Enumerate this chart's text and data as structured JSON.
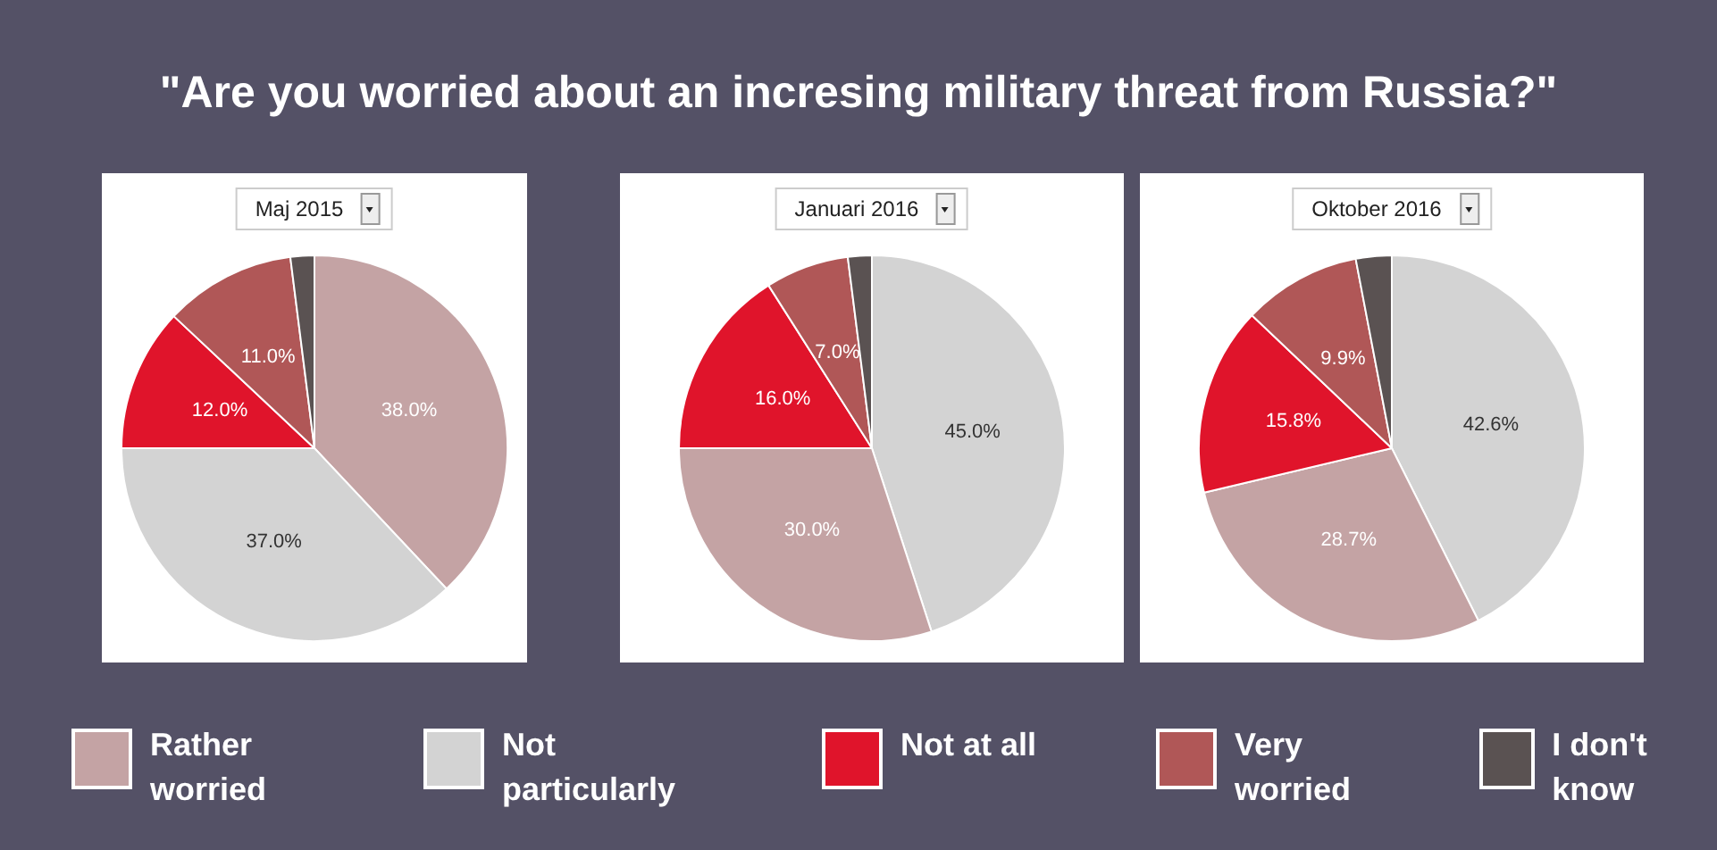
{
  "chart_data": [
    {
      "type": "other",
      "title": "\"Are you worried about an incresing military threat from Russia?\""
    },
    {
      "type": "pie",
      "title": "Maj 2015",
      "legend": "bottom",
      "categories": [
        "Rather worried",
        "Not particularly",
        "Not at all",
        "Very worried",
        "I don't know"
      ],
      "values": [
        38.0,
        37.0,
        12.0,
        11.0,
        2.0
      ],
      "colors": [
        "#c4a3a4",
        "#d3d3d3",
        "#e0142b",
        "#b05757",
        "#5a5252"
      ],
      "value_labels": [
        "38.0%",
        "37.0%",
        "12.0%",
        "11.0%",
        null
      ]
    },
    {
      "type": "pie",
      "title": "Januari 2016",
      "categories": [
        null,
        null,
        null,
        null,
        null
      ],
      "values": [
        45.0,
        30.0,
        16.0,
        7.0,
        2.0
      ],
      "colors": [
        "#d3d3d3",
        "#c4a3a4",
        "#e0142b",
        "#b05757",
        "#5a5252"
      ],
      "value_labels": [
        "45.0%",
        "30.0%",
        "16.0%",
        "7.0%",
        null
      ]
    },
    {
      "type": "pie",
      "title": "Oktober 2016",
      "categories": [
        null,
        null,
        null,
        null,
        null
      ],
      "values": [
        42.6,
        28.7,
        15.8,
        9.9,
        3.0
      ],
      "colors": [
        "#d3d3d3",
        "#c4a3a4",
        "#e0142b",
        "#b05757",
        "#5a5252"
      ],
      "value_labels": [
        "42.6%",
        "28.7%",
        "15.8%",
        "9.9%",
        null
      ]
    }
  ]
}
